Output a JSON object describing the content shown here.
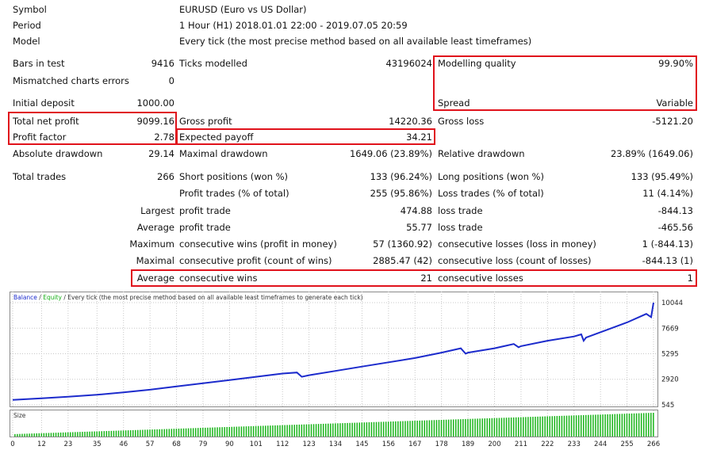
{
  "header": [
    {
      "label": "Symbol",
      "value": "EURUSD (Euro vs US Dollar)"
    },
    {
      "label": "Period",
      "value": "1 Hour (H1) 2018.01.01 22:00 - 2019.07.05 20:59"
    },
    {
      "label": "Model",
      "value": "Every tick (the most precise method based on all available least timeframes)"
    }
  ],
  "stats": {
    "bars_in_test": {
      "label": "Bars in test",
      "value": "9416"
    },
    "ticks_modelled": {
      "label": "Ticks modelled",
      "value": "43196024"
    },
    "modelling_quality": {
      "label": "Modelling quality",
      "value": "99.90%"
    },
    "mismatched": {
      "label": "Mismatched charts errors",
      "value": "0"
    },
    "initial_deposit": {
      "label": "Initial deposit",
      "value": "1000.00"
    },
    "spread": {
      "label": "Spread",
      "value": "Variable"
    },
    "total_net_profit": {
      "label": "Total net profit",
      "value": "9099.16"
    },
    "gross_profit": {
      "label": "Gross profit",
      "value": "14220.36"
    },
    "gross_loss": {
      "label": "Gross loss",
      "value": "-5121.20"
    },
    "profit_factor": {
      "label": "Profit factor",
      "value": "2.78"
    },
    "expected_payoff": {
      "label": "Expected payoff",
      "value": "34.21"
    },
    "absolute_drawdown": {
      "label": "Absolute drawdown",
      "value": "29.14"
    },
    "maximal_drawdown": {
      "label": "Maximal drawdown",
      "value": "1649.06 (23.89%)"
    },
    "relative_drawdown": {
      "label": "Relative drawdown",
      "value": "23.89% (1649.06)"
    },
    "total_trades": {
      "label": "Total trades",
      "value": "266"
    },
    "short_positions": {
      "label": "Short positions (won %)",
      "value": "133 (96.24%)"
    },
    "long_positions": {
      "label": "Long positions (won %)",
      "value": "133 (95.49%)"
    },
    "profit_trades": {
      "label": "Profit trades (% of total)",
      "value": "255 (95.86%)"
    },
    "loss_trades": {
      "label": "Loss trades (% of total)",
      "value": "11 (4.14%)"
    },
    "largest": {
      "prefix": "Largest",
      "profit_label": "profit trade",
      "profit_value": "474.88",
      "loss_label": "loss trade",
      "loss_value": "-844.13"
    },
    "average": {
      "prefix": "Average",
      "profit_label": "profit trade",
      "profit_value": "55.77",
      "loss_label": "loss trade",
      "loss_value": "-465.56"
    },
    "maximum": {
      "prefix": "Maximum",
      "wins_label": "consecutive wins (profit in money)",
      "wins_value": "57 (1360.92)",
      "losses_label": "consecutive losses (loss in money)",
      "losses_value": "1 (-844.13)"
    },
    "maximal": {
      "prefix": "Maximal",
      "profit_label": "consecutive profit (count of wins)",
      "profit_value": "2885.47 (42)",
      "loss_label": "consecutive loss (count of losses)",
      "loss_value": "-844.13 (1)"
    },
    "average_consec": {
      "prefix": "Average",
      "wins_label": "consecutive wins",
      "wins_value": "21",
      "losses_label": "consecutive losses",
      "losses_value": "1"
    }
  },
  "chart_data": {
    "type": "line",
    "legend": {
      "balance": "Balance",
      "sep1": " / ",
      "equity": "Equity",
      "rest": " / Every tick (the most precise method based on all available least timeframes to generate each tick)"
    },
    "colors": {
      "balance": "#1c2bcc",
      "equity": "#19b019",
      "volume": "#18b418",
      "grid": "#c8c8c8"
    },
    "y_ticks": [
      "10044",
      "7669",
      "5295",
      "2920",
      "545"
    ],
    "ylim": [
      545,
      10044
    ],
    "x_ticks": [
      "0",
      "12",
      "23",
      "35",
      "46",
      "57",
      "68",
      "79",
      "90",
      "101",
      "112",
      "123",
      "134",
      "145",
      "156",
      "167",
      "178",
      "189",
      "200",
      "211",
      "222",
      "233",
      "244",
      "255",
      "266"
    ],
    "xlim": [
      0,
      266
    ],
    "balance_points": [
      [
        0,
        1000
      ],
      [
        12,
        1150
      ],
      [
        23,
        1300
      ],
      [
        35,
        1480
      ],
      [
        46,
        1700
      ],
      [
        57,
        1950
      ],
      [
        68,
        2250
      ],
      [
        79,
        2550
      ],
      [
        90,
        2850
      ],
      [
        101,
        3150
      ],
      [
        112,
        3450
      ],
      [
        118,
        3550
      ],
      [
        120,
        3150
      ],
      [
        123,
        3300
      ],
      [
        134,
        3700
      ],
      [
        145,
        4100
      ],
      [
        156,
        4500
      ],
      [
        167,
        4900
      ],
      [
        178,
        5400
      ],
      [
        186,
        5800
      ],
      [
        188,
        5300
      ],
      [
        189,
        5400
      ],
      [
        200,
        5800
      ],
      [
        208,
        6200
      ],
      [
        210,
        5900
      ],
      [
        211,
        6000
      ],
      [
        222,
        6500
      ],
      [
        233,
        6900
      ],
      [
        236,
        7100
      ],
      [
        237,
        6500
      ],
      [
        238,
        6800
      ],
      [
        244,
        7300
      ],
      [
        255,
        8200
      ],
      [
        263,
        9000
      ],
      [
        265,
        8700
      ],
      [
        266,
        10044
      ]
    ],
    "volume_label": "Size",
    "volume_range": [
      1,
      266
    ]
  }
}
